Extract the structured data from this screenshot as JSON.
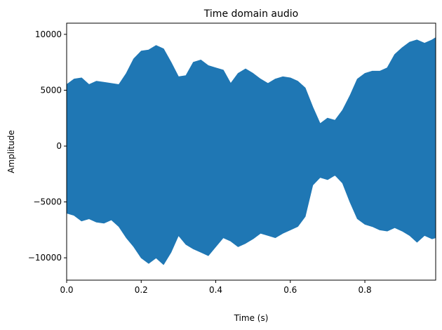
{
  "chart_data": {
    "type": "area",
    "title": "Time domain audio",
    "xlabel": "Time (s)",
    "ylabel": "Amplitude",
    "xlim": [
      0.0,
      0.99
    ],
    "ylim": [
      -12000,
      11000
    ],
    "xticks": [
      0.0,
      0.2,
      0.4,
      0.6,
      0.8
    ],
    "xtick_labels": [
      "0.0",
      "0.2",
      "0.4",
      "0.6",
      "0.8"
    ],
    "yticks": [
      -10000,
      -5000,
      0,
      5000,
      10000
    ],
    "ytick_labels": [
      "−10000",
      "−5000",
      "0",
      "5000",
      "10000"
    ],
    "grid": false,
    "series": [
      {
        "color": "#1f77b4",
        "x": [
          0.0,
          0.02,
          0.04,
          0.06,
          0.08,
          0.1,
          0.12,
          0.14,
          0.16,
          0.18,
          0.2,
          0.22,
          0.24,
          0.26,
          0.28,
          0.3,
          0.32,
          0.34,
          0.36,
          0.38,
          0.4,
          0.42,
          0.44,
          0.46,
          0.48,
          0.5,
          0.52,
          0.54,
          0.56,
          0.58,
          0.6,
          0.62,
          0.64,
          0.66,
          0.68,
          0.7,
          0.72,
          0.74,
          0.76,
          0.78,
          0.8,
          0.82,
          0.84,
          0.86,
          0.88,
          0.9,
          0.92,
          0.94,
          0.96,
          0.98,
          0.99
        ],
        "upper": [
          5500,
          6000,
          6100,
          5500,
          5800,
          5700,
          5600,
          5500,
          6500,
          7800,
          8500,
          8600,
          9000,
          8700,
          7500,
          6200,
          6300,
          7500,
          7700,
          7200,
          7000,
          6800,
          5600,
          6500,
          6900,
          6500,
          6000,
          5600,
          6000,
          6200,
          6100,
          5800,
          5200,
          3500,
          2000,
          2500,
          2300,
          3200,
          4500,
          6000,
          6500,
          6700,
          6700,
          7000,
          8200,
          8800,
          9300,
          9500,
          9200,
          9500,
          9700
        ],
        "lower": [
          -6000,
          -6200,
          -6700,
          -6500,
          -6800,
          -6900,
          -6600,
          -7200,
          -8200,
          -9000,
          -10000,
          -10500,
          -10000,
          -10600,
          -9500,
          -8000,
          -8800,
          -9200,
          -9500,
          -9800,
          -9000,
          -8200,
          -8500,
          -9000,
          -8700,
          -8300,
          -7800,
          -8000,
          -8200,
          -7800,
          -7500,
          -7200,
          -6300,
          -3500,
          -2800,
          -3000,
          -2600,
          -3300,
          -5000,
          -6500,
          -7000,
          -7200,
          -7500,
          -7600,
          -7300,
          -7600,
          -8000,
          -8600,
          -8000,
          -8300,
          -8200
        ]
      }
    ]
  }
}
